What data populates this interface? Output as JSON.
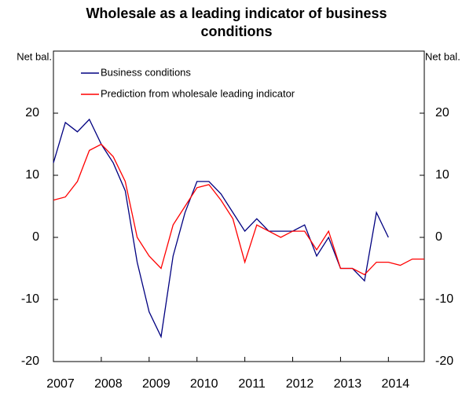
{
  "chart_data": {
    "type": "line",
    "title": "Wholesale as a leading indicator of business conditions",
    "ylabel": "Net bal.",
    "y2label": "Net bal.",
    "x": [
      2007,
      2007.25,
      2007.5,
      2007.75,
      2008,
      2008.25,
      2008.5,
      2008.75,
      2009,
      2009.25,
      2009.5,
      2009.75,
      2010,
      2010.25,
      2010.5,
      2010.75,
      2011,
      2011.25,
      2011.5,
      2011.75,
      2012,
      2012.25,
      2012.5,
      2012.75,
      2013,
      2013.25,
      2013.5,
      2013.75,
      2014,
      2014.25,
      2014.5,
      2014.75
    ],
    "series": [
      {
        "name": "Business conditions",
        "color": "#000080",
        "values": [
          12,
          18.5,
          17,
          19,
          15,
          12,
          7.5,
          -4,
          -12,
          -16,
          -3,
          4,
          9,
          9,
          7,
          4,
          1,
          3,
          1,
          1,
          1,
          2,
          -3,
          0,
          -5,
          -5,
          -7,
          4,
          0,
          null,
          null,
          null
        ]
      },
      {
        "name": "Prediction from wholesale leading indicator",
        "color": "#ff0000",
        "values": [
          6,
          6.5,
          9,
          14,
          15,
          13,
          9,
          0,
          -3,
          -5,
          2,
          5,
          8,
          8.5,
          6,
          3,
          -4,
          2,
          1,
          0,
          1,
          1,
          -2,
          1,
          -5,
          -5,
          -6,
          -4,
          -4,
          -4.5,
          -3.5,
          -3.5
        ]
      }
    ],
    "xlim": [
      2007,
      2014.75
    ],
    "xticks": [
      2007,
      2008,
      2009,
      2010,
      2011,
      2012,
      2013,
      2014
    ],
    "ylim": [
      -20,
      30
    ],
    "yticks": [
      -20,
      -10,
      0,
      10,
      20
    ],
    "y2lim": [
      -20,
      30
    ],
    "y2ticks": [
      -20,
      -10,
      0,
      10,
      20
    ],
    "grid": false,
    "legend": "upper left"
  }
}
